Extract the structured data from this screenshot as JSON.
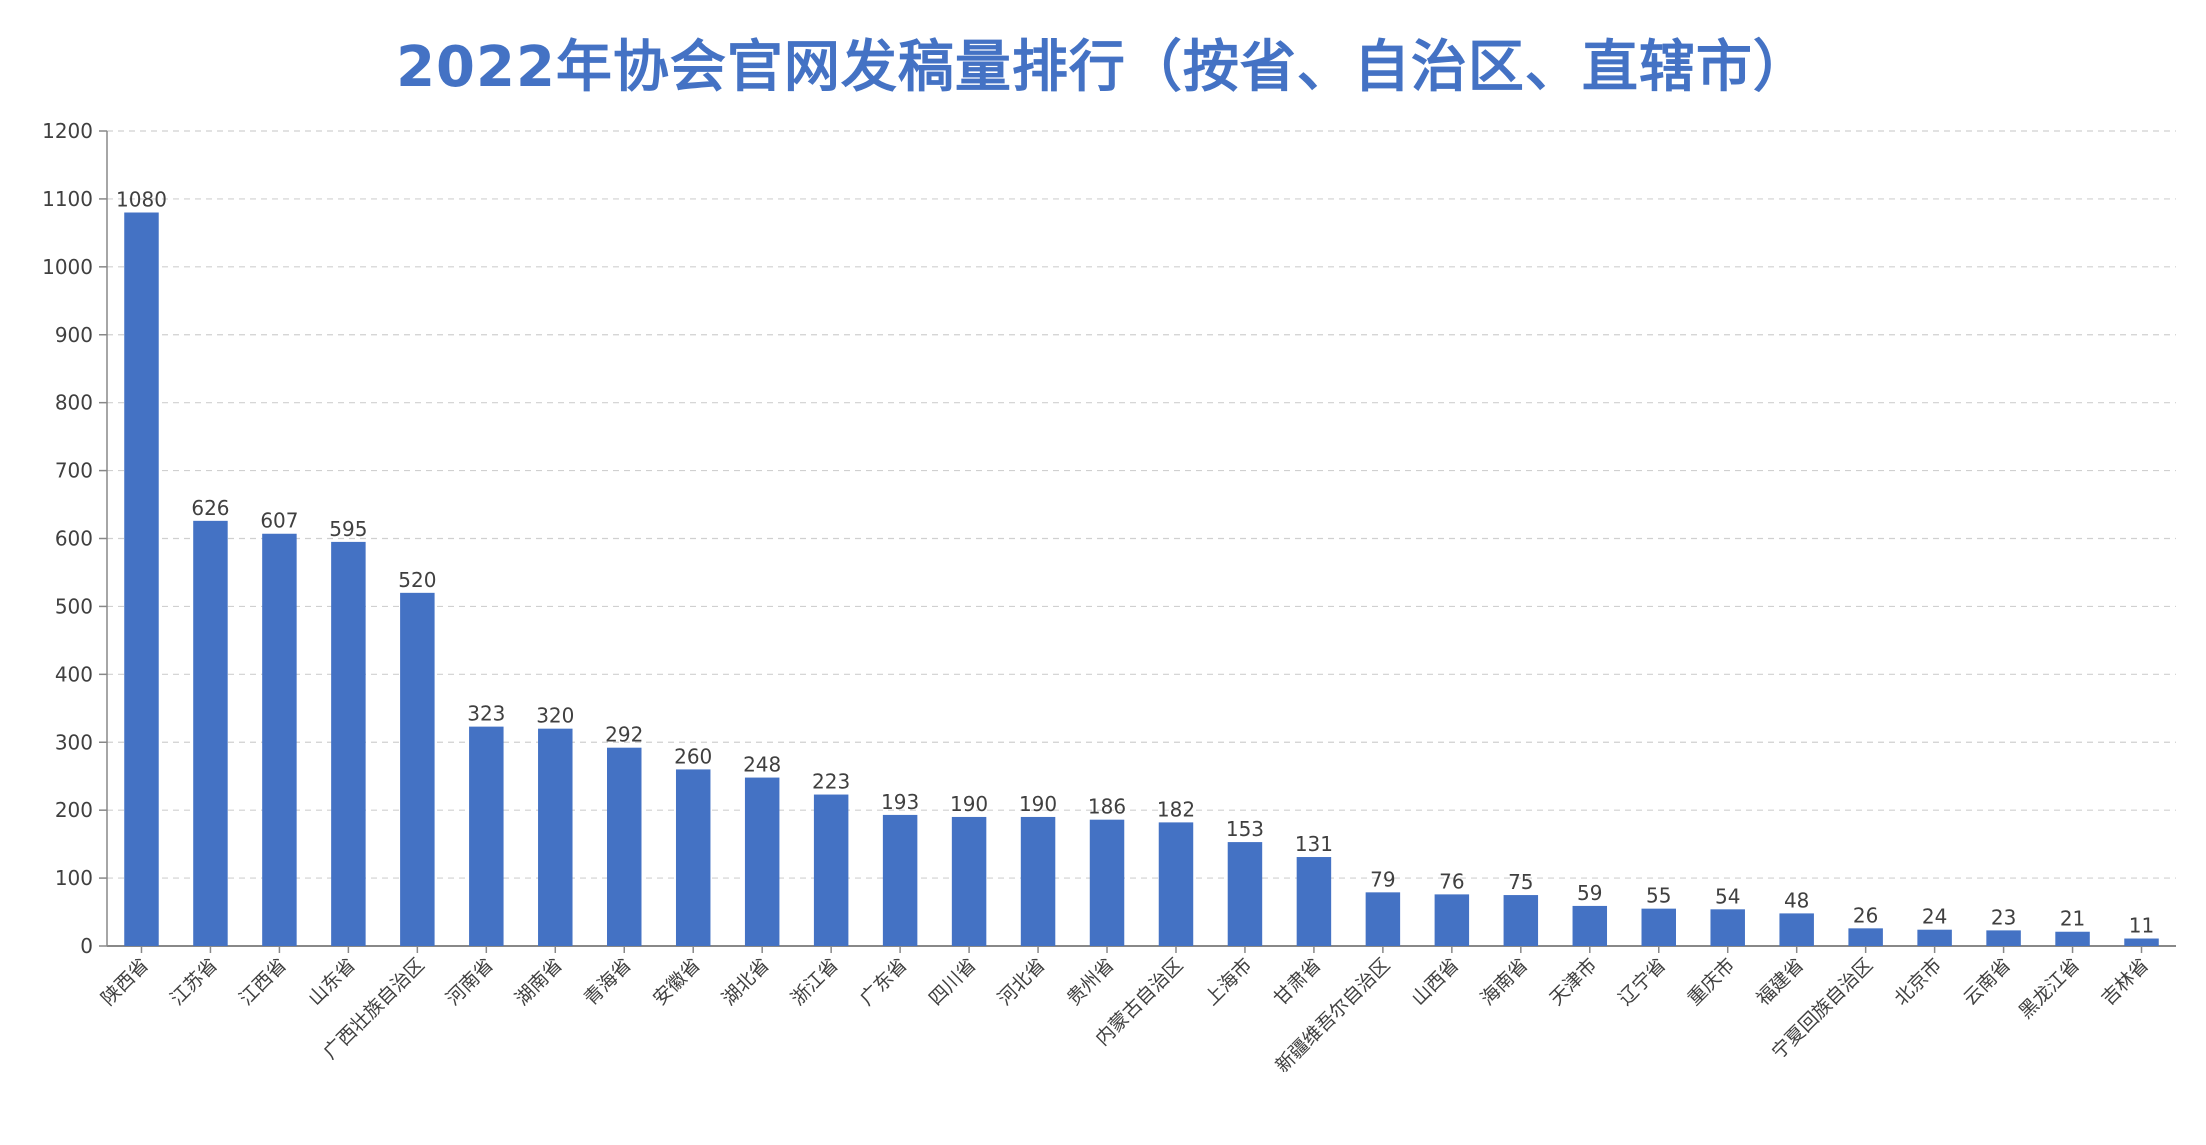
{
  "chart_data": {
    "type": "bar",
    "title": "2022年协会官网发稿量排行（按省、自治区、直辖市）",
    "xlabel": "",
    "ylabel": "",
    "ylim": [
      0,
      1200
    ],
    "yticks": [
      0,
      100,
      200,
      300,
      400,
      500,
      600,
      700,
      800,
      900,
      1000,
      1100,
      1200
    ],
    "grid": true,
    "legend": "none",
    "colors": {
      "bar": "#4472C4",
      "title": "#4472C4",
      "grid": "#d0d0d0",
      "axis": "#888888",
      "text": "#404040"
    },
    "categories": [
      "陕西省",
      "江苏省",
      "江西省",
      "山东省",
      "广西壮族自治区",
      "河南省",
      "湖南省",
      "青海省",
      "安徽省",
      "湖北省",
      "浙江省",
      "广东省",
      "四川省",
      "河北省",
      "贵州省",
      "内蒙古自治区",
      "上海市",
      "甘肃省",
      "新疆维吾尔自治区",
      "山西省",
      "海南省",
      "天津市",
      "辽宁省",
      "重庆市",
      "福建省",
      "宁夏回族自治区",
      "北京市",
      "云南省",
      "黑龙江省",
      "吉林省"
    ],
    "values": [
      1080,
      626,
      607,
      595,
      520,
      323,
      320,
      292,
      260,
      248,
      223,
      193,
      190,
      190,
      186,
      182,
      153,
      131,
      79,
      76,
      75,
      59,
      55,
      54,
      48,
      26,
      24,
      23,
      21,
      11
    ]
  }
}
